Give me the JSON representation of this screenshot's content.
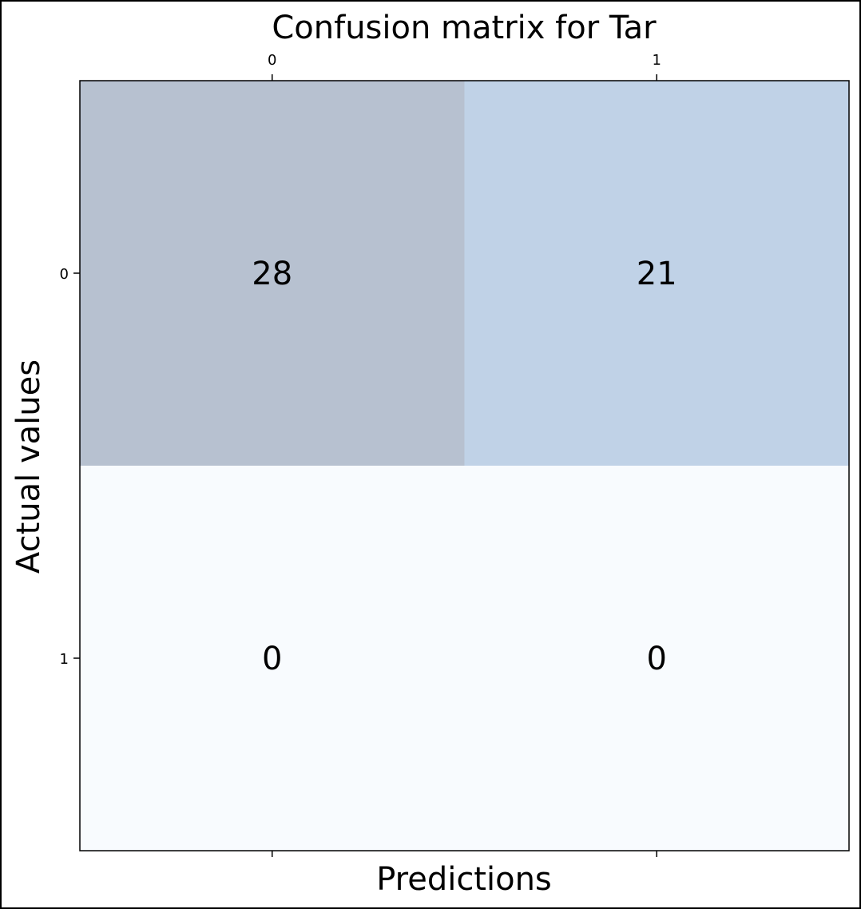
{
  "chart_data": {
    "type": "heatmap",
    "title": "Confusion matrix for Tar",
    "xlabel": "Predictions",
    "ylabel": "Actual values",
    "x_tick_labels": [
      "0",
      "1"
    ],
    "y_tick_labels": [
      "0",
      "1"
    ],
    "x_tick_position": "top",
    "matrix": [
      [
        28,
        21
      ],
      [
        0,
        0
      ]
    ],
    "colormap": "Blues",
    "alpha": 0.3,
    "grid": false,
    "legend": "none",
    "colors": {
      "cell_00": "#b7c1d0",
      "cell_01": "#c0d2e7",
      "cell_10": "#f8fbfe",
      "cell_11": "#f8fbfe",
      "text": "#000000",
      "axes": "#000000"
    }
  }
}
